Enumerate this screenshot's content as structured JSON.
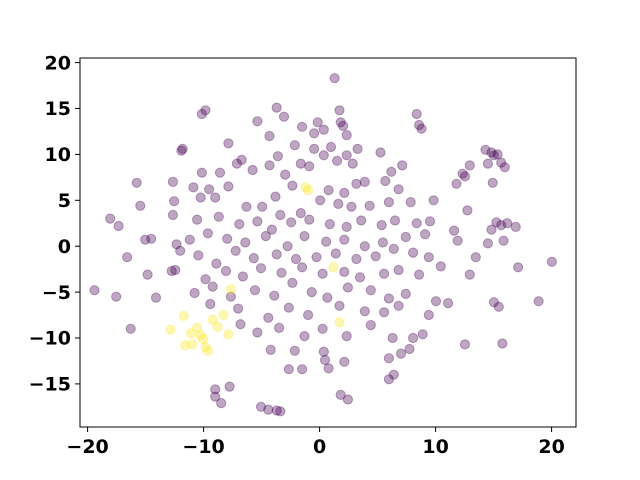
{
  "chart_data": {
    "type": "scatter",
    "title": "",
    "xlabel": "",
    "ylabel": "",
    "xlim": [
      -19.8,
      21.3
    ],
    "ylim": [
      -19.5,
      20.7
    ],
    "xticks": [
      -20,
      -10,
      0,
      10,
      20
    ],
    "yticks": [
      -15,
      -10,
      -5,
      0,
      5,
      10,
      15,
      20
    ],
    "xtick_labels": [
      "−20",
      "−10",
      "0",
      "10",
      "20"
    ],
    "ytick_labels": [
      "−15",
      "−10",
      "−5",
      "0",
      "5",
      "10",
      "15",
      "20"
    ],
    "grid": false,
    "legend": "none",
    "colors": {
      "class_0": "#440154",
      "class_1": "#fde725"
    },
    "point_opacity": 0.35,
    "series": [
      {
        "class": 0,
        "points": [
          [
            1.3,
            18.5
          ],
          [
            -3.5,
            15.3
          ],
          [
            -9.4,
            15.0
          ],
          [
            -9.7,
            14.6
          ],
          [
            1.7,
            15.0
          ],
          [
            -2.9,
            14.3
          ],
          [
            -5.1,
            13.8
          ],
          [
            8.1,
            14.6
          ],
          [
            8.3,
            13.4
          ],
          [
            8.5,
            13.0
          ],
          [
            -0.1,
            13.7
          ],
          [
            -1.4,
            13.2
          ],
          [
            0.4,
            12.9
          ],
          [
            1.8,
            13.7
          ],
          [
            2.0,
            13.3
          ],
          [
            -0.4,
            12.5
          ],
          [
            2.3,
            12.3
          ],
          [
            -11.3,
            10.8
          ],
          [
            -11.4,
            10.6
          ],
          [
            -7.5,
            11.4
          ],
          [
            -4.1,
            12.2
          ],
          [
            -2.0,
            11.2
          ],
          [
            -0.4,
            10.8
          ],
          [
            1.0,
            11.0
          ],
          [
            2.3,
            10.1
          ],
          [
            3.2,
            10.8
          ],
          [
            5.1,
            10.4
          ],
          [
            -6.8,
            9.2
          ],
          [
            -3.4,
            10.0
          ],
          [
            -1.5,
            9.2
          ],
          [
            -0.8,
            8.9
          ],
          [
            0.4,
            10.1
          ],
          [
            1.5,
            9.5
          ],
          [
            2.8,
            9.2
          ],
          [
            -9.7,
            8.2
          ],
          [
            -8.2,
            8.2
          ],
          [
            -6.4,
            9.6
          ],
          [
            -5.5,
            8.5
          ],
          [
            -4.1,
            9.0
          ],
          [
            -2.8,
            8.0
          ],
          [
            6.0,
            8.3
          ],
          [
            6.9,
            9.0
          ],
          [
            13.8,
            10.7
          ],
          [
            14.3,
            10.4
          ],
          [
            14.5,
            10.1
          ],
          [
            14.8,
            10.2
          ],
          [
            15.1,
            9.3
          ],
          [
            14.0,
            9.2
          ],
          [
            12.5,
            9.0
          ],
          [
            11.9,
            8.1
          ],
          [
            15.4,
            8.8
          ],
          [
            12.1,
            7.8
          ],
          [
            11.4,
            7.0
          ],
          [
            14.4,
            7.1
          ],
          [
            -12.1,
            7.2
          ],
          [
            -15.1,
            7.1
          ],
          [
            -10.4,
            6.6
          ],
          [
            -9.1,
            6.4
          ],
          [
            -7.5,
            6.7
          ],
          [
            -3.6,
            5.6
          ],
          [
            -2.2,
            6.8
          ],
          [
            0.8,
            6.3
          ],
          [
            2.1,
            6.0
          ],
          [
            3.1,
            7.0
          ],
          [
            3.8,
            7.2
          ],
          [
            5.5,
            7.3
          ],
          [
            6.6,
            6.4
          ],
          [
            -14.8,
            4.6
          ],
          [
            -12.0,
            5.1
          ],
          [
            -9.8,
            5.5
          ],
          [
            -8.6,
            5.5
          ],
          [
            -6.0,
            4.5
          ],
          [
            -4.7,
            4.5
          ],
          [
            -3.2,
            3.6
          ],
          [
            -1.5,
            3.8
          ],
          [
            0.1,
            5.2
          ],
          [
            1.6,
            4.8
          ],
          [
            2.7,
            4.5
          ],
          [
            4.2,
            4.6
          ],
          [
            5.8,
            5.0
          ],
          [
            7.6,
            5.0
          ],
          [
            9.5,
            5.2
          ],
          [
            -17.3,
            3.2
          ],
          [
            -16.6,
            2.4
          ],
          [
            -12.1,
            3.6
          ],
          [
            -10.1,
            3.1
          ],
          [
            -8.3,
            3.4
          ],
          [
            -6.6,
            2.6
          ],
          [
            -5.1,
            2.9
          ],
          [
            -3.9,
            2.0
          ],
          [
            -2.3,
            2.8
          ],
          [
            -0.8,
            3.1
          ],
          [
            0.9,
            2.6
          ],
          [
            2.3,
            2.3
          ],
          [
            3.5,
            3.0
          ],
          [
            5.2,
            2.5
          ],
          [
            6.3,
            3.0
          ],
          [
            8.1,
            2.7
          ],
          [
            9.2,
            2.9
          ],
          [
            12.3,
            4.1
          ],
          [
            14.7,
            2.8
          ],
          [
            15.1,
            2.5
          ],
          [
            15.6,
            2.7
          ],
          [
            16.3,
            2.3
          ],
          [
            14.3,
            2.0
          ],
          [
            -14.4,
            0.9
          ],
          [
            -13.9,
            1.0
          ],
          [
            -11.8,
            0.4
          ],
          [
            -10.7,
            0.9
          ],
          [
            -9.2,
            1.6
          ],
          [
            -7.6,
            1.0
          ],
          [
            -6.1,
            0.6
          ],
          [
            -4.4,
            1.3
          ],
          [
            -2.6,
            0.2
          ],
          [
            -1.2,
            1.3
          ],
          [
            0.6,
            0.7
          ],
          [
            2.1,
            0.9
          ],
          [
            3.8,
            0.2
          ],
          [
            5.3,
            0.6
          ],
          [
            7.2,
            1.2
          ],
          [
            8.8,
            1.5
          ],
          [
            11.2,
            1.9
          ],
          [
            11.5,
            0.8
          ],
          [
            14.0,
            0.5
          ],
          [
            15.3,
            0.8
          ],
          [
            -15.9,
            -1.0
          ],
          [
            -11.5,
            -0.3
          ],
          [
            -10.0,
            -0.8
          ],
          [
            -8.5,
            -1.7
          ],
          [
            -6.9,
            -0.3
          ],
          [
            -5.4,
            -1.1
          ],
          [
            -3.5,
            -0.7
          ],
          [
            -1.9,
            -1.2
          ],
          [
            -0.2,
            -1.0
          ],
          [
            1.4,
            -0.6
          ],
          [
            3.1,
            -1.2
          ],
          [
            4.7,
            -0.9
          ],
          [
            6.2,
            -0.1
          ],
          [
            7.8,
            -0.5
          ],
          [
            9.1,
            -1.0
          ],
          [
            13.0,
            -1.0
          ],
          [
            16.5,
            -2.1
          ],
          [
            19.3,
            -1.5
          ],
          [
            -14.2,
            -2.9
          ],
          [
            -12.2,
            -2.5
          ],
          [
            -11.9,
            -2.4
          ],
          [
            -9.4,
            -3.4
          ],
          [
            -7.7,
            -2.5
          ],
          [
            -6.3,
            -3.1
          ],
          [
            -4.8,
            -2.2
          ],
          [
            -3.1,
            -2.7
          ],
          [
            -1.4,
            -2.1
          ],
          [
            0.3,
            -2.8
          ],
          [
            2.1,
            -2.6
          ],
          [
            3.4,
            -3.2
          ],
          [
            5.4,
            -2.8
          ],
          [
            6.6,
            -2.4
          ],
          [
            8.3,
            -2.9
          ],
          [
            10.1,
            -2.0
          ],
          [
            12.5,
            -2.9
          ],
          [
            -18.6,
            -4.6
          ],
          [
            -16.8,
            -5.3
          ],
          [
            -13.5,
            -5.4
          ],
          [
            -10.3,
            -4.9
          ],
          [
            -8.8,
            -4.2
          ],
          [
            -7.3,
            -5.3
          ],
          [
            -5.3,
            -4.6
          ],
          [
            -3.7,
            -5.2
          ],
          [
            -2.2,
            -3.8
          ],
          [
            -0.6,
            -4.8
          ],
          [
            0.7,
            -5.4
          ],
          [
            2.4,
            -4.3
          ],
          [
            4.3,
            -4.6
          ],
          [
            5.8,
            -5.5
          ],
          [
            7.2,
            -5.0
          ],
          [
            9.7,
            -5.8
          ],
          [
            10.7,
            -6.0
          ],
          [
            14.5,
            -5.9
          ],
          [
            14.9,
            -6.4
          ],
          [
            18.2,
            -5.8
          ],
          [
            -15.6,
            -8.8
          ],
          [
            -9.0,
            -6.1
          ],
          [
            -6.7,
            -6.6
          ],
          [
            -4.2,
            -7.6
          ],
          [
            -2.5,
            -6.5
          ],
          [
            -0.9,
            -7.3
          ],
          [
            1.7,
            -6.3
          ],
          [
            3.8,
            -6.9
          ],
          [
            5.4,
            -7.0
          ],
          [
            6.6,
            -6.3
          ],
          [
            9.1,
            -7.3
          ],
          [
            -6.5,
            -8.3
          ],
          [
            -5.1,
            -9.2
          ],
          [
            -3.3,
            -8.7
          ],
          [
            -1.2,
            -9.6
          ],
          [
            0.3,
            -8.8
          ],
          [
            2.3,
            -9.6
          ],
          [
            4.3,
            -8.4
          ],
          [
            6.1,
            -9.8
          ],
          [
            7.8,
            -9.8
          ],
          [
            8.6,
            -9.4
          ],
          [
            12.1,
            -10.5
          ],
          [
            15.2,
            -10.4
          ],
          [
            -4.0,
            -11.1
          ],
          [
            -2.0,
            -11.2
          ],
          [
            0.4,
            -11.3
          ],
          [
            0.5,
            -12.2
          ],
          [
            2.1,
            -12.4
          ],
          [
            5.8,
            -12.0
          ],
          [
            6.8,
            -11.5
          ],
          [
            7.5,
            -11.0
          ],
          [
            -2.5,
            -13.2
          ],
          [
            -1.4,
            -13.2
          ],
          [
            0.8,
            -13.1
          ],
          [
            6.2,
            -13.8
          ],
          [
            5.8,
            -14.3
          ],
          [
            -7.4,
            -15.1
          ],
          [
            -8.6,
            -15.4
          ],
          [
            -8.6,
            -16.2
          ],
          [
            -8.1,
            -16.9
          ],
          [
            1.8,
            -16.0
          ],
          [
            2.4,
            -16.5
          ],
          [
            -4.8,
            -17.3
          ],
          [
            -4.2,
            -17.6
          ],
          [
            -3.2,
            -17.8
          ],
          [
            -3.5,
            -17.7
          ]
        ]
      },
      {
        "class": 1,
        "points": [
          [
            -1.1,
            6.6
          ],
          [
            -0.9,
            6.3
          ],
          [
            1.2,
            -2.1
          ],
          [
            1.7,
            -8.1
          ],
          [
            -7.3,
            -4.5
          ],
          [
            -11.2,
            -7.4
          ],
          [
            -12.3,
            -8.9
          ],
          [
            -11.1,
            -10.6
          ],
          [
            -10.6,
            -9.3
          ],
          [
            -10.1,
            -8.7
          ],
          [
            -9.6,
            -9.9
          ],
          [
            -9.4,
            -10.8
          ],
          [
            -9.2,
            -11.2
          ],
          [
            -8.8,
            -7.8
          ],
          [
            -8.4,
            -8.6
          ],
          [
            -7.9,
            -7.3
          ],
          [
            -7.5,
            -9.4
          ],
          [
            -9.8,
            -9.5
          ],
          [
            -10.5,
            -10.5
          ]
        ]
      }
    ]
  }
}
